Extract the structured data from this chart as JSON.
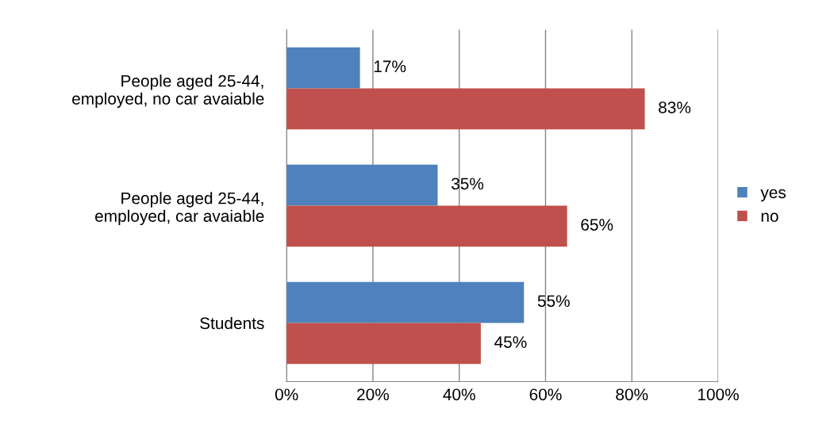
{
  "chart_data": {
    "type": "bar",
    "orientation": "horizontal",
    "categories": [
      "People aged 25-44,\nemployed, no car avaiable",
      "People aged 25-44,\nemployed, car avaiable",
      "Students"
    ],
    "series": [
      {
        "name": "yes",
        "color": "#4f81bd",
        "values": [
          17,
          35,
          55
        ],
        "value_labels": [
          "17%",
          "35%",
          "55%"
        ]
      },
      {
        "name": "no",
        "color": "#c0504d",
        "values": [
          83,
          65,
          45
        ],
        "value_labels": [
          "83%",
          "65%",
          "45%"
        ]
      }
    ],
    "xlim": [
      0,
      100
    ],
    "xticks": [
      {
        "value": 0,
        "label": "0%"
      },
      {
        "value": 20,
        "label": "20%"
      },
      {
        "value": 40,
        "label": "40%"
      },
      {
        "value": 60,
        "label": "60%"
      },
      {
        "value": 80,
        "label": "80%"
      },
      {
        "value": 100,
        "label": "100%"
      }
    ],
    "grid": "x",
    "legend": "right"
  }
}
